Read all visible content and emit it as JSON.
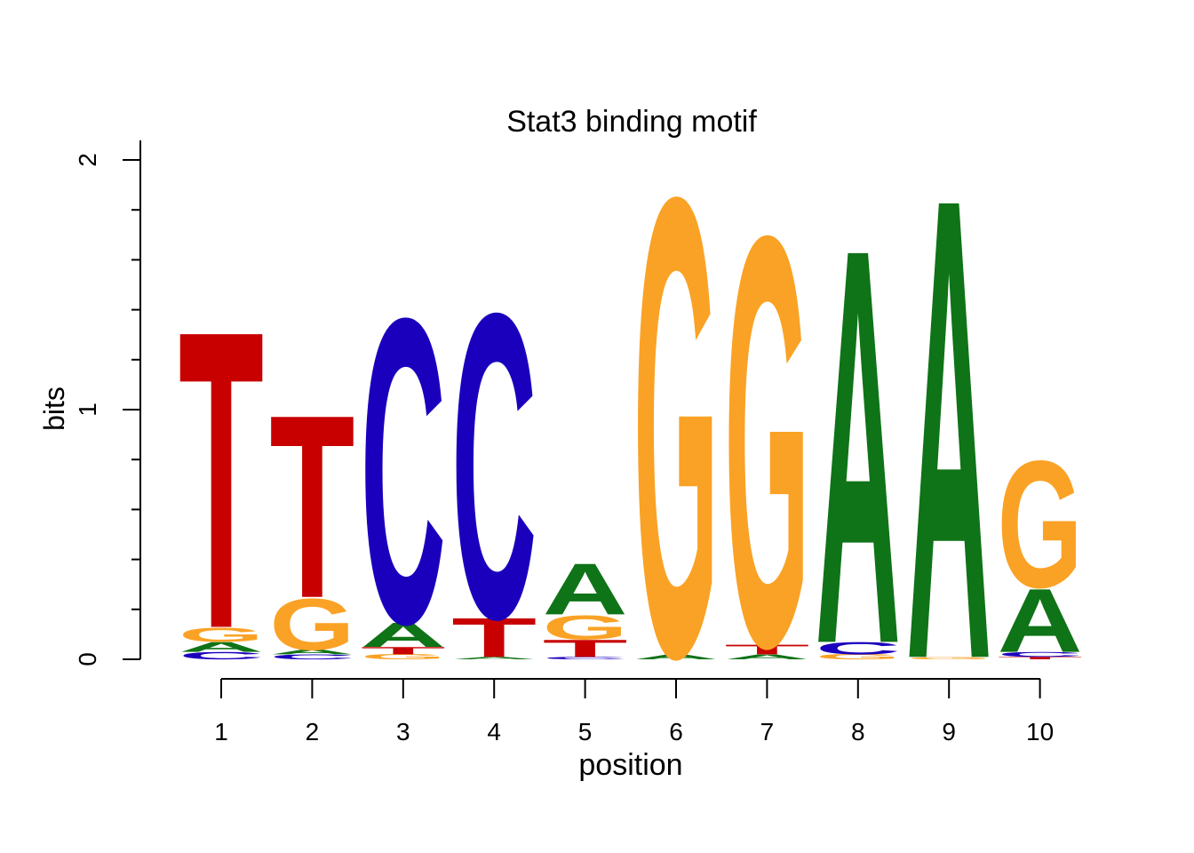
{
  "chart_data": {
    "type": "sequence-logo",
    "title": "Stat3 binding motif",
    "xlabel": "position",
    "ylabel": "bits",
    "ylim": [
      0,
      2
    ],
    "yticks": [
      "0",
      "1",
      "2"
    ],
    "xticks": [
      "1",
      "2",
      "3",
      "4",
      "5",
      "6",
      "7",
      "8",
      "9",
      "10"
    ],
    "colors": {
      "A": "#0f7317",
      "C": "#1a00bd",
      "G": "#faa225",
      "T": "#c80000"
    },
    "positions": [
      {
        "stack": [
          {
            "letter": "C",
            "bits": 0.03
          },
          {
            "letter": "A",
            "bits": 0.04
          },
          {
            "letter": "G",
            "bits": 0.06
          },
          {
            "letter": "T",
            "bits": 1.22
          }
        ]
      },
      {
        "stack": [
          {
            "letter": "C",
            "bits": 0.02
          },
          {
            "letter": "A",
            "bits": 0.02
          },
          {
            "letter": "G",
            "bits": 0.21
          },
          {
            "letter": "T",
            "bits": 0.75
          }
        ]
      },
      {
        "stack": [
          {
            "letter": "G",
            "bits": 0.02
          },
          {
            "letter": "T",
            "bits": 0.03
          },
          {
            "letter": "A",
            "bits": 0.1
          },
          {
            "letter": "C",
            "bits": 1.25
          }
        ]
      },
      {
        "stack": [
          {
            "letter": "A",
            "bits": 0.01
          },
          {
            "letter": "T",
            "bits": 0.16
          },
          {
            "letter": "C",
            "bits": 1.25
          }
        ]
      },
      {
        "stack": [
          {
            "letter": "C",
            "bits": 0.01
          },
          {
            "letter": "T",
            "bits": 0.07
          },
          {
            "letter": "G",
            "bits": 0.1
          },
          {
            "letter": "A",
            "bits": 0.21
          }
        ]
      },
      {
        "stack": [
          {
            "letter": "A",
            "bits": 0.02
          },
          {
            "letter": "G",
            "bits": 1.88
          }
        ]
      },
      {
        "stack": [
          {
            "letter": "A",
            "bits": 0.02
          },
          {
            "letter": "T",
            "bits": 0.04
          },
          {
            "letter": "G",
            "bits": 1.68
          }
        ]
      },
      {
        "stack": [
          {
            "letter": "G",
            "bits": 0.02
          },
          {
            "letter": "C",
            "bits": 0.05
          },
          {
            "letter": "A",
            "bits": 1.62
          }
        ]
      },
      {
        "stack": [
          {
            "letter": "G",
            "bits": 0.01
          },
          {
            "letter": "A",
            "bits": 1.89
          }
        ]
      },
      {
        "stack": [
          {
            "letter": "T",
            "bits": 0.01
          },
          {
            "letter": "C",
            "bits": 0.02
          },
          {
            "letter": "A",
            "bits": 0.26
          },
          {
            "letter": "G",
            "bits": 0.52
          }
        ]
      }
    ]
  }
}
